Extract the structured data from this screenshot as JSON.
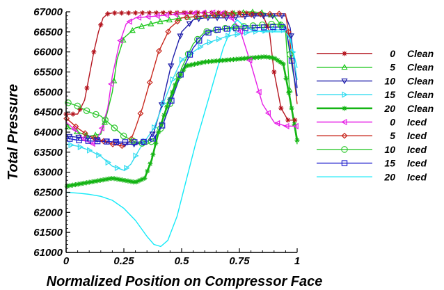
{
  "chart_data": {
    "type": "line",
    "xlabel": "Normalized Position on Compressor Face",
    "ylabel": "Total Pressure",
    "xlim": [
      0,
      1
    ],
    "ylim": [
      61000,
      67000
    ],
    "x_ticks": [
      "0",
      "0.25",
      "0.5",
      "0.75",
      "1"
    ],
    "y_ticks": [
      "61000",
      "61500",
      "62000",
      "62500",
      "63000",
      "63500",
      "64000",
      "64500",
      "65000",
      "65500",
      "66000",
      "66500",
      "67000"
    ],
    "legend_position": "right",
    "grid": false,
    "series": [
      {
        "name": "0",
        "condition": "Clean",
        "color": "#b4141e",
        "marker": "asterisk",
        "x": [
          0,
          0.05,
          0.08,
          0.1,
          0.12,
          0.14,
          0.16,
          0.18,
          0.2,
          0.25,
          0.5,
          0.75,
          0.85,
          0.88,
          0.9,
          0.93,
          0.96,
          1.0
        ],
        "y": [
          64450,
          64450,
          64800,
          65400,
          66000,
          66500,
          66850,
          66950,
          66970,
          66970,
          66980,
          66980,
          66950,
          66500,
          65500,
          64600,
          64300,
          64300
        ]
      },
      {
        "name": "5",
        "condition": "Clean",
        "color": "#1ec81e",
        "marker": "triangle-up",
        "x": [
          0,
          0.05,
          0.1,
          0.15,
          0.17,
          0.2,
          0.22,
          0.25,
          0.3,
          0.4,
          0.5,
          0.6,
          0.7,
          0.8,
          0.85,
          0.9,
          0.95,
          0.97,
          1.0
        ],
        "y": [
          64150,
          64000,
          63900,
          63950,
          64300,
          65000,
          65800,
          66350,
          66600,
          66750,
          66850,
          66900,
          66950,
          67000,
          66980,
          66900,
          66500,
          64800,
          63700
        ]
      },
      {
        "name": "10",
        "condition": "Clean",
        "color": "#1e1eaa",
        "marker": "triangle-down",
        "x": [
          0,
          0.1,
          0.2,
          0.25,
          0.3,
          0.35,
          0.38,
          0.42,
          0.46,
          0.5,
          0.55,
          0.6,
          0.7,
          0.8,
          0.9,
          0.95,
          0.97,
          1.0
        ],
        "y": [
          63900,
          63850,
          63750,
          63700,
          63700,
          63750,
          64000,
          64800,
          65800,
          66500,
          66800,
          66850,
          66850,
          66900,
          66900,
          66900,
          66600,
          65100
        ]
      },
      {
        "name": "15",
        "condition": "Clean",
        "color": "#32dcf0",
        "marker": "triangle-right",
        "x": [
          0,
          0.05,
          0.1,
          0.15,
          0.2,
          0.25,
          0.28,
          0.32,
          0.38,
          0.42,
          0.46,
          0.5,
          0.55,
          0.6,
          0.7,
          0.8,
          0.9,
          0.95,
          0.97,
          1.0
        ],
        "y": [
          63700,
          63650,
          63550,
          63400,
          63150,
          63050,
          63200,
          63600,
          64100,
          64700,
          65300,
          65800,
          66000,
          66200,
          66400,
          66500,
          66550,
          66550,
          66400,
          65300
        ]
      },
      {
        "name": "20",
        "condition": "Clean",
        "color": "#14b414",
        "marker": "asterisk",
        "line_width": "thick",
        "x": [
          0,
          0.05,
          0.1,
          0.15,
          0.2,
          0.25,
          0.3,
          0.34,
          0.37,
          0.4,
          0.44,
          0.48,
          0.52,
          0.6,
          0.7,
          0.8,
          0.86,
          0.9,
          0.94,
          0.97,
          1.0
        ],
        "y": [
          62650,
          62700,
          62750,
          62800,
          62850,
          62800,
          62750,
          62850,
          63300,
          64000,
          64700,
          65300,
          65650,
          65750,
          65800,
          65850,
          65880,
          65850,
          65700,
          64800,
          63800
        ]
      },
      {
        "name": "0",
        "condition": "Iced",
        "color": "#e61ee6",
        "marker": "triangle-left",
        "x": [
          0,
          0.05,
          0.08,
          0.12,
          0.15,
          0.18,
          0.2,
          0.23,
          0.26,
          0.3,
          0.4,
          0.5,
          0.6,
          0.65,
          0.7,
          0.75,
          0.8,
          0.85,
          0.9,
          0.95,
          1.0
        ],
        "y": [
          64250,
          64000,
          63800,
          63700,
          64000,
          64600,
          65400,
          66200,
          66700,
          66850,
          66900,
          66950,
          66980,
          66980,
          66950,
          66600,
          65700,
          64700,
          64250,
          64150,
          64150
        ]
      },
      {
        "name": "5",
        "condition": "Iced",
        "color": "#c8281e",
        "marker": "diamond",
        "x": [
          0,
          0.05,
          0.1,
          0.2,
          0.25,
          0.28,
          0.3,
          0.33,
          0.36,
          0.4,
          0.45,
          0.5,
          0.6,
          0.7,
          0.8,
          0.9,
          0.95,
          0.97,
          1.0
        ],
        "y": [
          64350,
          64100,
          63900,
          63700,
          63650,
          63800,
          64100,
          64600,
          65200,
          66000,
          66600,
          66850,
          66900,
          66920,
          66930,
          66950,
          66950,
          66200,
          64700
        ]
      },
      {
        "name": "10",
        "condition": "Iced",
        "color": "#2ec82e",
        "marker": "circle",
        "x": [
          0,
          0.05,
          0.1,
          0.15,
          0.2,
          0.25,
          0.3,
          0.35,
          0.38,
          0.42,
          0.46,
          0.5,
          0.55,
          0.6,
          0.65,
          0.7,
          0.8,
          0.9,
          0.95,
          0.97,
          1.0
        ],
        "y": [
          64750,
          64650,
          64500,
          64400,
          64150,
          63900,
          63750,
          63700,
          63800,
          64200,
          64900,
          65600,
          66200,
          66500,
          66550,
          66600,
          66650,
          66700,
          66650,
          65900,
          64900
        ]
      },
      {
        "name": "15",
        "condition": "Iced",
        "color": "#1e1ecd",
        "marker": "square",
        "x": [
          0,
          0.05,
          0.1,
          0.15,
          0.2,
          0.25,
          0.3,
          0.35,
          0.38,
          0.42,
          0.46,
          0.5,
          0.55,
          0.6,
          0.65,
          0.7,
          0.8,
          0.9,
          0.95,
          0.97,
          1.0
        ],
        "y": [
          63850,
          63800,
          63780,
          63770,
          63760,
          63750,
          63750,
          63760,
          63850,
          64200,
          64850,
          65500,
          66100,
          66450,
          66550,
          66580,
          66600,
          66620,
          66620,
          66000,
          64900
        ]
      },
      {
        "name": "20",
        "condition": "Iced",
        "color": "#14eaf8",
        "marker": "none",
        "x": [
          0,
          0.05,
          0.1,
          0.15,
          0.2,
          0.25,
          0.3,
          0.35,
          0.38,
          0.41,
          0.44,
          0.48,
          0.52,
          0.56,
          0.6,
          0.64,
          0.68,
          0.72,
          0.74,
          0.76,
          0.8,
          0.85,
          0.9,
          0.95,
          0.97,
          1.0
        ],
        "y": [
          62500,
          62480,
          62450,
          62400,
          62300,
          62100,
          61800,
          61400,
          61200,
          61150,
          61300,
          61900,
          62800,
          63700,
          64500,
          65300,
          66100,
          66650,
          66800,
          66700,
          66550,
          66500,
          66500,
          66500,
          66300,
          65600
        ]
      }
    ]
  }
}
